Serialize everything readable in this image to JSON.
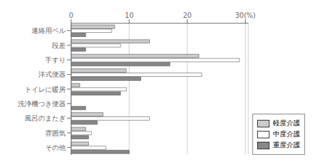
{
  "chart_data": {
    "type": "bar",
    "orientation": "horizontal",
    "categories": [
      "連絡用ベル",
      "段差",
      "手すり",
      "洋式便器",
      "トイレに暖房",
      "洗浄機つき便器",
      "風呂のまたぎ",
      "雰囲気",
      "その他"
    ],
    "series": [
      {
        "name": "軽度介護",
        "color": "#cccccc",
        "values": [
          7.5,
          13.5,
          22.0,
          9.5,
          1.5,
          0.0,
          5.5,
          2.5,
          3.0
        ]
      },
      {
        "name": "中度介護",
        "color": "#ffffff",
        "values": [
          7.0,
          8.5,
          29.0,
          22.5,
          9.5,
          0.0,
          13.5,
          3.5,
          6.0
        ]
      },
      {
        "name": "重度介護",
        "color": "#888888",
        "values": [
          2.5,
          2.5,
          17.0,
          12.0,
          8.5,
          2.5,
          4.5,
          3.0,
          10.0
        ]
      }
    ],
    "xlim": [
      0,
      30.5
    ],
    "xticks": [
      0,
      10,
      20,
      {
        "value": 30,
        "label": "30(%)"
      }
    ],
    "grid": true,
    "legend": "lower right"
  }
}
